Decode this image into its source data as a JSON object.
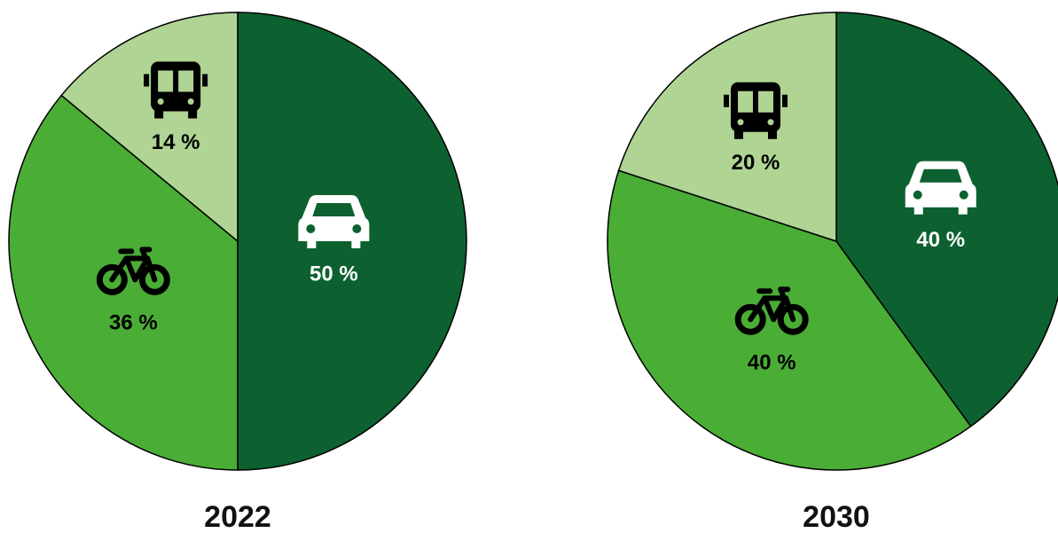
{
  "chart_data": [
    {
      "type": "pie",
      "title": "2022",
      "values": [
        50,
        36,
        14
      ],
      "value_labels": [
        "50 %",
        "36 %",
        "14 %"
      ],
      "colors": [
        "#0d6130",
        "#4aad35",
        "#afd494"
      ]
    },
    {
      "type": "pie",
      "title": "2030",
      "values": [
        40,
        40,
        20
      ],
      "value_labels": [
        "40 %",
        "40 %",
        "20 %"
      ],
      "colors": [
        "#0d6130",
        "#4aad35",
        "#afd494"
      ]
    }
  ]
}
